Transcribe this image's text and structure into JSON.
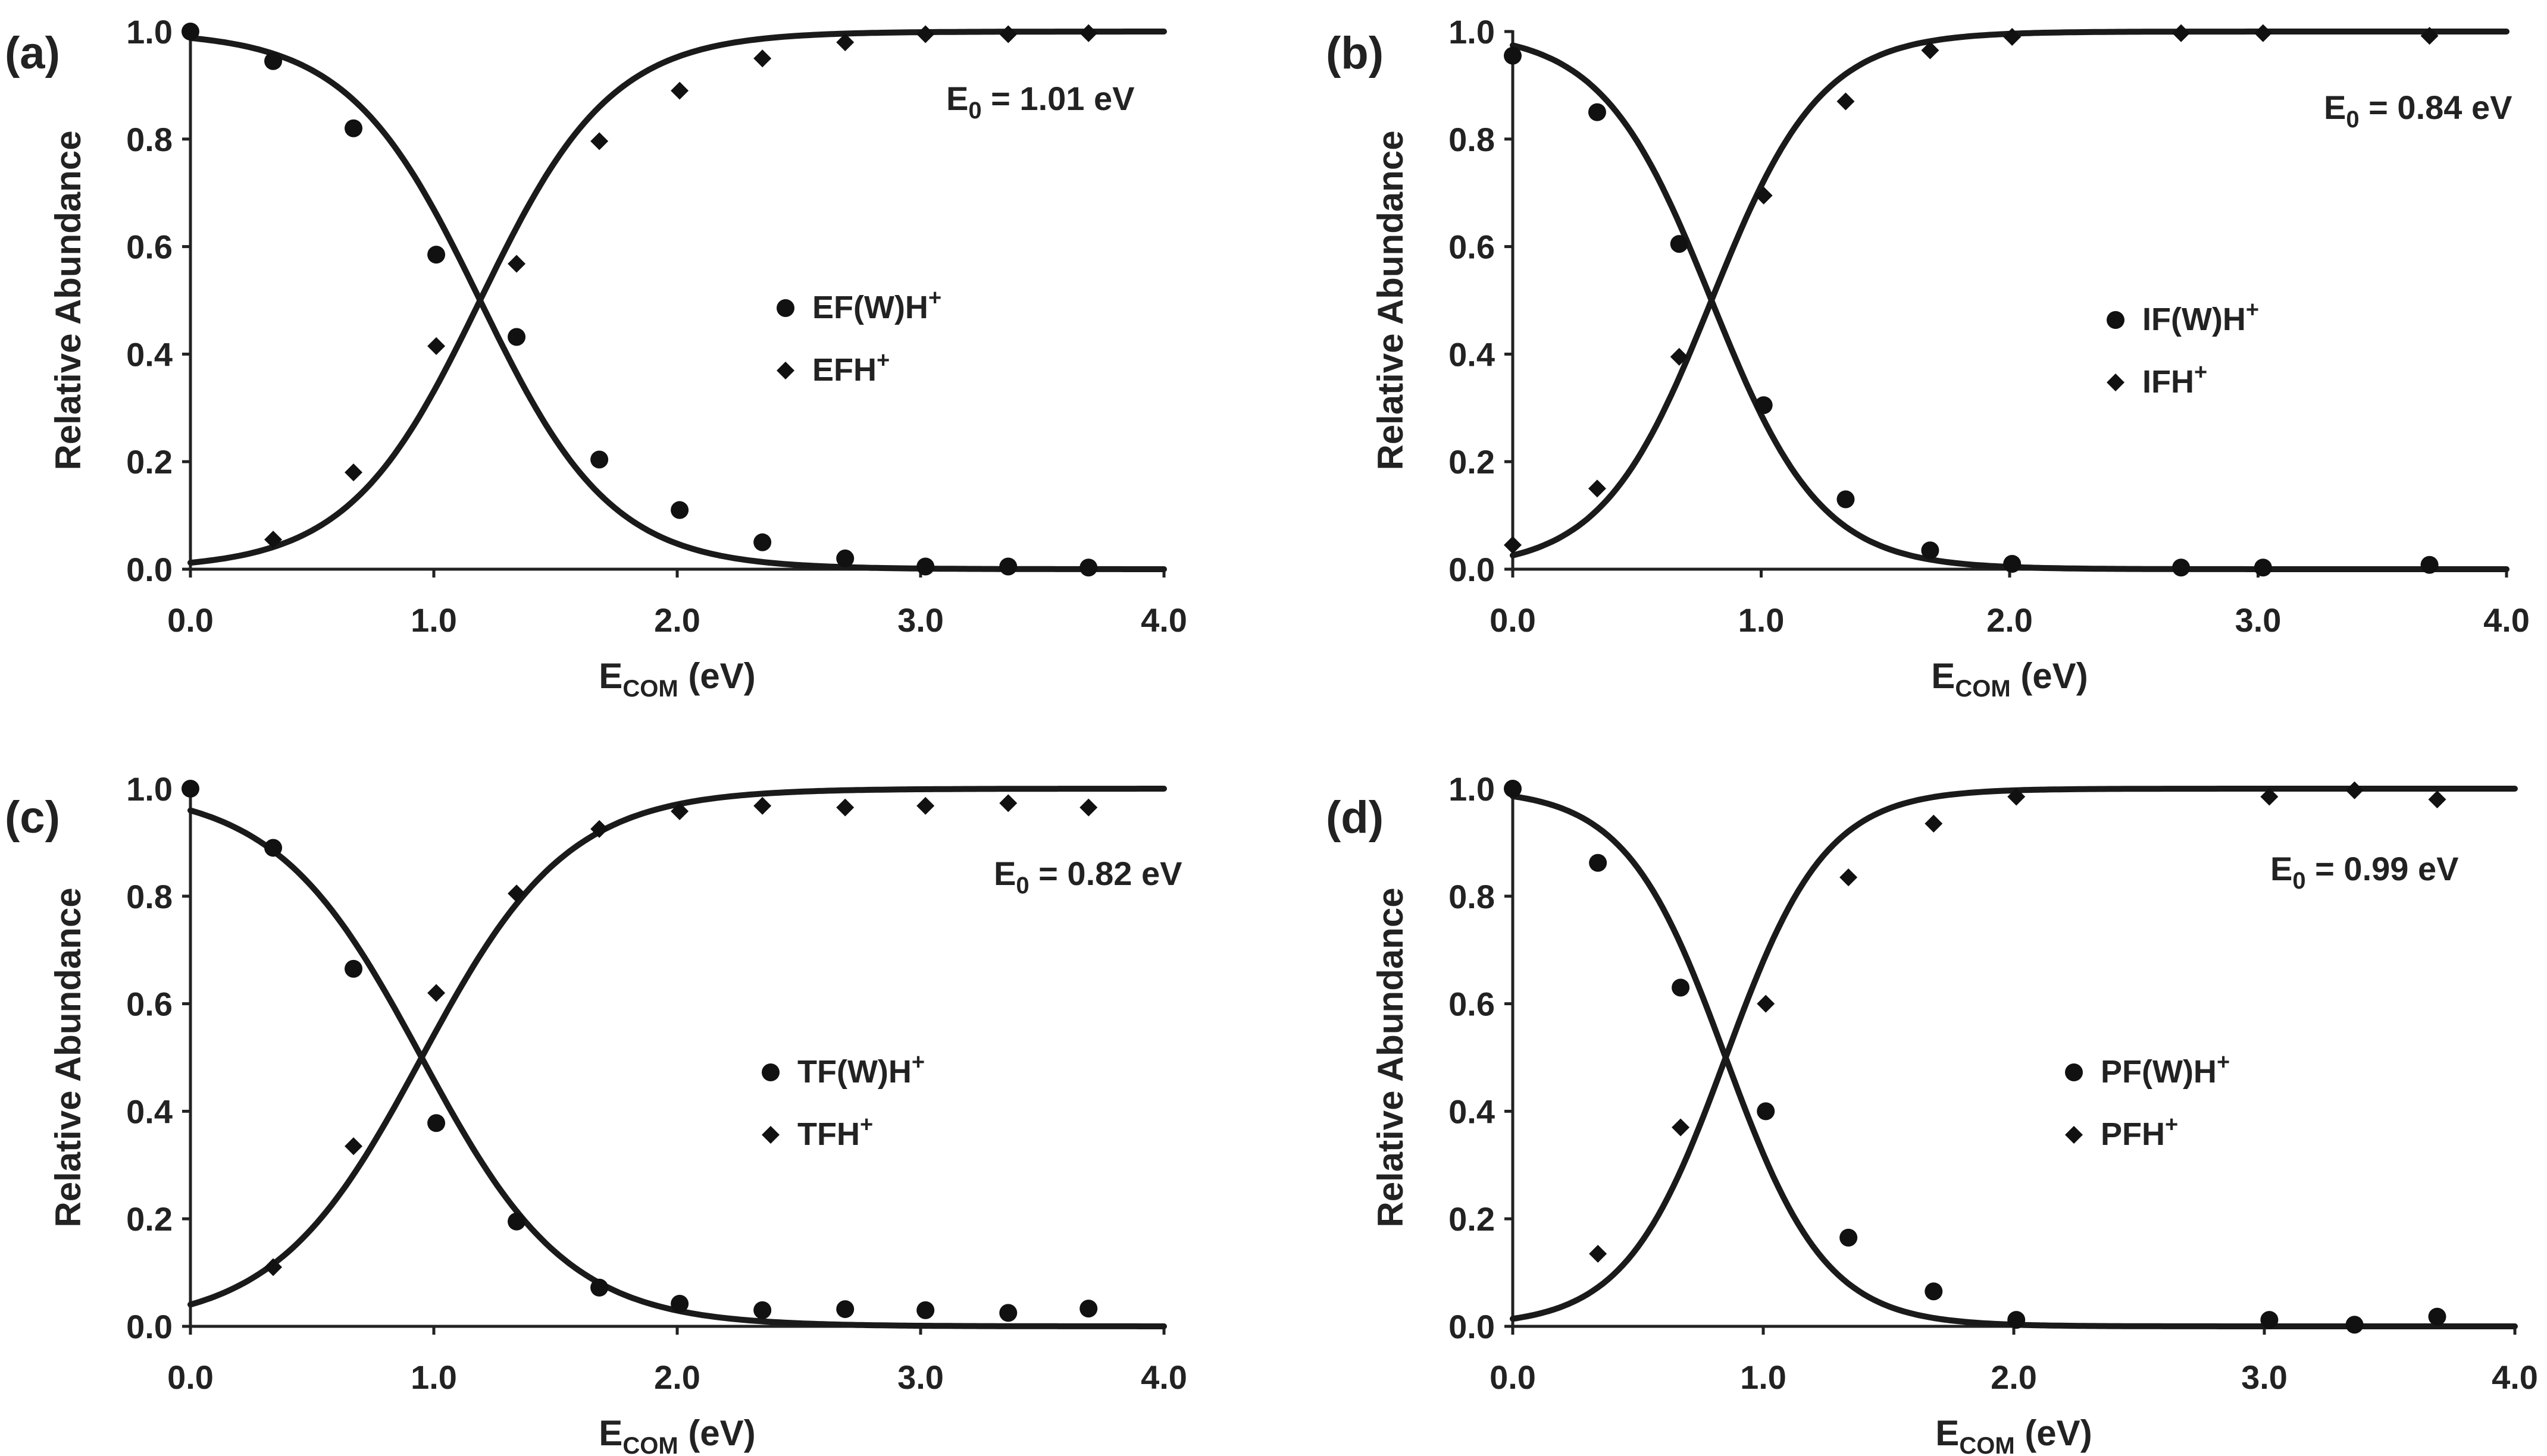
{
  "chart_data": [
    {
      "type": "scatter",
      "panel_label": "(a)",
      "xlabel_main": "E",
      "xlabel_sub": "COM",
      "xlabel_rest": " (eV)",
      "ylabel": "Relative Abundance",
      "xlim": [
        0,
        4
      ],
      "ylim": [
        0,
        1
      ],
      "x_ticks": [
        "0.0",
        "1.0",
        "2.0",
        "3.0",
        "4.0"
      ],
      "y_ticks": [
        "0.0",
        "0.2",
        "0.4",
        "0.6",
        "0.8",
        "1.0"
      ],
      "annotation": {
        "prefix": "E",
        "sub": "0",
        "rest": " = 1.01 eV"
      },
      "fit": {
        "midpoint": 1.19,
        "width": 0.27
      },
      "series": [
        {
          "name": "EF(W)H",
          "name_sup": "+",
          "marker": "circle",
          "x": [
            0.0,
            0.34,
            0.67,
            1.01,
            1.34,
            1.68,
            2.01,
            2.35,
            2.69,
            3.02,
            3.36,
            3.69
          ],
          "y": [
            1.0,
            0.945,
            0.82,
            0.585,
            0.432,
            0.204,
            0.11,
            0.05,
            0.02,
            0.005,
            0.005,
            0.003
          ]
        },
        {
          "name": "EFH",
          "name_sup": "+",
          "marker": "diamond",
          "x": [
            0.34,
            0.67,
            1.01,
            1.34,
            1.68,
            2.01,
            2.35,
            2.69,
            3.02,
            3.36,
            3.69
          ],
          "y": [
            0.055,
            0.18,
            0.415,
            0.568,
            0.796,
            0.89,
            0.95,
            0.98,
            0.995,
            0.995,
            0.997
          ]
        }
      ]
    },
    {
      "type": "scatter",
      "panel_label": "(b)",
      "xlabel_main": "E",
      "xlabel_sub": "COM",
      "xlabel_rest": " (eV)",
      "ylabel": "Relative Abundance",
      "xlim": [
        0,
        4
      ],
      "ylim": [
        0,
        1
      ],
      "x_ticks": [
        "0.0",
        "1.0",
        "2.0",
        "3.0",
        "4.0"
      ],
      "y_ticks": [
        "0.0",
        "0.2",
        "0.4",
        "0.6",
        "0.8",
        "1.0"
      ],
      "annotation": {
        "prefix": "E",
        "sub": "0",
        "rest": " = 0.84 eV"
      },
      "fit": {
        "midpoint": 0.8,
        "width": 0.22
      },
      "series": [
        {
          "name": "IF(W)H",
          "name_sup": "+",
          "marker": "circle",
          "x": [
            0.0,
            0.34,
            0.67,
            1.01,
            1.34,
            1.68,
            2.01,
            2.69,
            3.02,
            3.69
          ],
          "y": [
            0.955,
            0.85,
            0.605,
            0.305,
            0.13,
            0.035,
            0.01,
            0.003,
            0.003,
            0.008
          ]
        },
        {
          "name": "IFH",
          "name_sup": "+",
          "marker": "diamond",
          "x": [
            0.0,
            0.34,
            0.67,
            1.01,
            1.34,
            1.68,
            2.01,
            2.69,
            3.02,
            3.69
          ],
          "y": [
            0.045,
            0.15,
            0.395,
            0.695,
            0.87,
            0.965,
            0.99,
            0.997,
            0.997,
            0.992
          ]
        }
      ]
    },
    {
      "type": "scatter",
      "panel_label": "(c)",
      "xlabel_main": "E",
      "xlabel_sub": "COM",
      "xlabel_rest": " (eV)",
      "ylabel": "Relative Abundance",
      "xlim": [
        0,
        4
      ],
      "ylim": [
        0,
        1
      ],
      "x_ticks": [
        "0.0",
        "1.0",
        "2.0",
        "3.0",
        "4.0"
      ],
      "y_ticks": [
        "0.0",
        "0.2",
        "0.4",
        "0.6",
        "0.8",
        "1.0"
      ],
      "annotation": {
        "prefix": "E",
        "sub": "0",
        "rest": " = 0.82 eV"
      },
      "fit": {
        "midpoint": 0.95,
        "width": 0.3
      },
      "series": [
        {
          "name": "TF(W)H",
          "name_sup": "+",
          "marker": "circle",
          "x": [
            0.0,
            0.34,
            0.67,
            1.01,
            1.34,
            1.68,
            2.01,
            2.35,
            2.69,
            3.02,
            3.36,
            3.69
          ],
          "y": [
            1.0,
            0.89,
            0.665,
            0.378,
            0.195,
            0.072,
            0.042,
            0.03,
            0.032,
            0.03,
            0.025,
            0.033
          ]
        },
        {
          "name": "TFH",
          "name_sup": "+",
          "marker": "diamond",
          "x": [
            0.34,
            0.67,
            1.01,
            1.34,
            1.68,
            2.01,
            2.35,
            2.69,
            3.02,
            3.36,
            3.69
          ],
          "y": [
            0.11,
            0.335,
            0.62,
            0.805,
            0.925,
            0.958,
            0.968,
            0.965,
            0.968,
            0.973,
            0.965
          ]
        }
      ]
    },
    {
      "type": "scatter",
      "panel_label": "(d)",
      "xlabel_main": "E",
      "xlabel_sub": "COM",
      "xlabel_rest": " (eV)",
      "ylabel": "Relative Abundance",
      "xlim": [
        0,
        4
      ],
      "ylim": [
        0,
        1
      ],
      "x_ticks": [
        "0.0",
        "1.0",
        "2.0",
        "3.0",
        "4.0"
      ],
      "y_ticks": [
        "0.0",
        "0.2",
        "0.4",
        "0.6",
        "0.8",
        "1.0"
      ],
      "annotation": {
        "prefix": "E",
        "sub": "0",
        "rest": " = 0.99 eV"
      },
      "fit": {
        "midpoint": 0.85,
        "width": 0.2
      },
      "series": [
        {
          "name": "PF(W)H",
          "name_sup": "+",
          "marker": "circle",
          "x": [
            0.0,
            0.34,
            0.67,
            1.01,
            1.34,
            1.68,
            2.01,
            3.02,
            3.36,
            3.69
          ],
          "y": [
            1.0,
            0.862,
            0.63,
            0.4,
            0.165,
            0.065,
            0.012,
            0.012,
            0.003,
            0.018
          ]
        },
        {
          "name": "PFH",
          "name_sup": "+",
          "marker": "diamond",
          "x": [
            0.34,
            0.67,
            1.01,
            1.34,
            1.68,
            2.01,
            3.02,
            3.36,
            3.69
          ],
          "y": [
            0.135,
            0.37,
            0.6,
            0.835,
            0.935,
            0.985,
            0.985,
            0.997,
            0.98
          ]
        }
      ]
    }
  ]
}
